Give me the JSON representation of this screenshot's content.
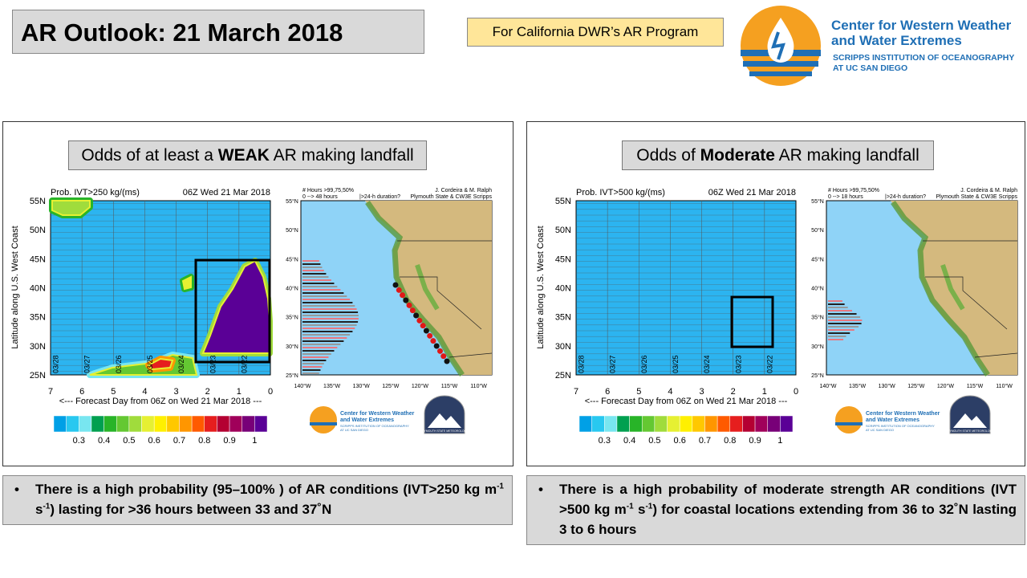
{
  "title": "AR Outlook: 21 March 2018",
  "program": "For California DWR’s AR Program",
  "logo": {
    "line1": "Center for Western Weather",
    "line2": "and Water Extremes",
    "line3": "SCRIPPS INSTITUTION OF OCEANOGRAPHY",
    "line4": "AT UC SAN DIEGO"
  },
  "plymouth": "PLYMOUTH STATE METEOROLOGY",
  "ylabel": "Latitude along U.S. West Coast",
  "yticks": [
    "55N",
    "50N",
    "45N",
    "40N",
    "35N",
    "30N",
    "25N"
  ],
  "xticks": [
    "7",
    "6",
    "5",
    "4",
    "3",
    "2",
    "1",
    "0"
  ],
  "xlabel": "<--- Forecast Day from 06Z on Wed 21 Mar 2018 ---",
  "dates": [
    "03/28",
    "03/27",
    "03/26",
    "03/25",
    "03/24",
    "03/23",
    "03/22"
  ],
  "colorbar_labels": [
    "0.3",
    "0.4",
    "0.5",
    "0.6",
    "0.7",
    "0.8",
    "0.9",
    "1"
  ],
  "colorbar_colors": [
    "#00a0e6",
    "#28c8f0",
    "#78e6f0",
    "#00a050",
    "#28b428",
    "#64c832",
    "#a0dc3c",
    "#e6f032",
    "#fff000",
    "#ffc800",
    "#ff9600",
    "#ff5a00",
    "#e61e1e",
    "#b40032",
    "#a0005a",
    "#780078",
    "#5a0096"
  ],
  "map_lat": [
    "55°N",
    "50°N",
    "45°N",
    "40°N",
    "35°N",
    "30°N",
    "25°N"
  ],
  "map_lon": [
    "140°W",
    "135°W",
    "130°W",
    "125°W",
    "120°W",
    "115°W",
    "110°W"
  ],
  "credit": [
    "J. Cordeira & M. Ralph",
    "Plymouth State & CW3E Scripps"
  ],
  "map_note_title": "# Hours >99,75,50%",
  "map_note_flag": "|>24-h duration?",
  "panels": [
    {
      "heading": [
        "Odds of at least a ",
        "WEAK",
        " AR making landfall"
      ],
      "plot_title": "Prob. IVT>250 kg/(ms)",
      "time": "06Z Wed 21 Mar 2018",
      "map_note_range": "0 --> 48 hours",
      "bullet": [
        "There is a high probability (95–100% ) of AR conditions (IVT>250 kg m",
        "-1",
        " s",
        "-1",
        ") lasting for >36 hours between 33 and 37˚N"
      ]
    },
    {
      "heading": [
        "Odds of ",
        "Moderate",
        " AR making landfall"
      ],
      "plot_title": "Prob. IVT>500 kg/(ms)",
      "time": "06Z Wed 21 Mar 2018",
      "map_note_range": "0 --> 18 hours",
      "bullet": [
        "There is a high probability of moderate strength AR conditions (IVT >500 kg m",
        "-1",
        " s",
        "-1",
        ") for coastal locations extending from 36 to 32˚N lasting 3 to 6 hours"
      ]
    }
  ]
}
